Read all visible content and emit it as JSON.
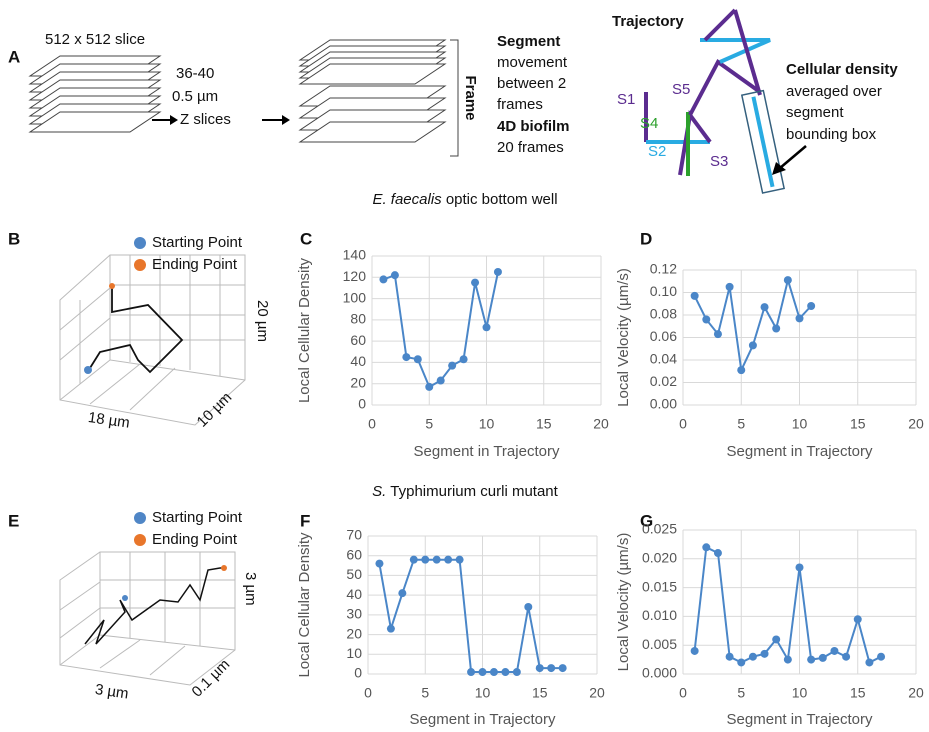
{
  "panel_labels": [
    "A",
    "B",
    "C",
    "D",
    "E",
    "F",
    "G"
  ],
  "panel_a": {
    "slice_label": "512 x 512 slice",
    "z_count": "36-40",
    "z_step": "0.5 µm",
    "z_label": "Z slices",
    "frame_label": "Frame",
    "segment_text": [
      "Segment",
      "movement",
      "between 2",
      "frames",
      "4D biofilm",
      "20 frames"
    ],
    "trajectory_title": "Trajectory",
    "segment_names": [
      "S1",
      "S2",
      "S3",
      "S4",
      "S5"
    ],
    "density_text": [
      "Cellular density",
      "averaged over",
      "segment",
      "bounding box"
    ]
  },
  "sections": [
    {
      "species": "E. faecalis",
      "rest": "optic bottom well"
    },
    {
      "species": "S.",
      "rest": "Typhimurium  curli mutant"
    }
  ],
  "trajectories_3d": [
    {
      "legend": [
        "Starting Point",
        "Ending Point"
      ],
      "axis_labels": [
        "18 µm",
        "10 µm",
        "20 µm"
      ]
    },
    {
      "legend": [
        "Starting Point",
        "Ending Point"
      ],
      "axis_labels": [
        "3 µm",
        "0.1 µm",
        "3 µm"
      ]
    }
  ],
  "chart_data": [
    {
      "type": "line",
      "x_label": "Segment in Trajectory",
      "y_label": "Local Cellular Density",
      "color": "#4a86c8",
      "grid": true,
      "x": [
        1,
        2,
        3,
        4,
        5,
        6,
        7,
        8,
        9,
        10,
        11
      ],
      "values": [
        118,
        122,
        45,
        43,
        17,
        23,
        37,
        43,
        115,
        73,
        125
      ],
      "xlim": [
        0,
        20
      ],
      "xticks": [
        0,
        5,
        10,
        15,
        20
      ],
      "ylim": [
        0,
        140
      ],
      "yticks": [
        0,
        20,
        40,
        60,
        80,
        100,
        120,
        140
      ]
    },
    {
      "type": "line",
      "x_label": "Segment in Trajectory",
      "y_label": "Local Velocity (µm/s)",
      "color": "#4a86c8",
      "grid": true,
      "x": [
        1,
        2,
        3,
        4,
        5,
        6,
        7,
        8,
        9,
        10,
        11
      ],
      "values": [
        0.097,
        0.076,
        0.063,
        0.105,
        0.031,
        0.053,
        0.087,
        0.068,
        0.111,
        0.077,
        0.088
      ],
      "xlim": [
        0,
        20
      ],
      "xticks": [
        0,
        5,
        10,
        15,
        20
      ],
      "ylim": [
        0,
        0.12
      ],
      "yticks": [
        {
          "value": 0,
          "label": "0.00"
        },
        {
          "value": 0.02,
          "label": "0.02"
        },
        {
          "value": 0.04,
          "label": "0.04"
        },
        {
          "value": 0.06,
          "label": "0.06"
        },
        {
          "value": 0.08,
          "label": "0.08"
        },
        {
          "value": 0.1,
          "label": "0.10"
        },
        {
          "value": 0.12,
          "label": "0.12"
        }
      ]
    },
    {
      "type": "line",
      "x_label": "Segment in Trajectory",
      "y_label": "Local Cellular Density",
      "color": "#4a86c8",
      "grid": true,
      "x": [
        1,
        2,
        3,
        4,
        5,
        6,
        7,
        8,
        9,
        10,
        11,
        12,
        13,
        14,
        15,
        16,
        17
      ],
      "values": [
        56,
        23,
        41,
        58,
        58,
        58,
        58,
        58,
        1,
        1,
        1,
        1,
        1,
        34,
        3,
        3,
        3
      ],
      "xlim": [
        0,
        20
      ],
      "xticks": [
        0,
        5,
        10,
        15,
        20
      ],
      "ylim": [
        0,
        70
      ],
      "yticks": [
        0,
        10,
        20,
        30,
        40,
        50,
        60,
        70
      ]
    },
    {
      "type": "line",
      "x_label": "Segment in Trajectory",
      "y_label": "Local Velocity (µm/s)",
      "color": "#4a86c8",
      "grid": true,
      "x": [
        1,
        2,
        3,
        4,
        5,
        6,
        7,
        8,
        9,
        10,
        11,
        12,
        13,
        14,
        15,
        16,
        17
      ],
      "values": [
        0.004,
        0.022,
        0.021,
        0.003,
        0.002,
        0.003,
        0.0035,
        0.006,
        0.0025,
        0.0185,
        0.0025,
        0.0028,
        0.004,
        0.003,
        0.0095,
        0.002,
        0.003
      ],
      "xlim": [
        0,
        20
      ],
      "xticks": [
        0,
        5,
        10,
        15,
        20
      ],
      "ylim": [
        0,
        0.025
      ],
      "yticks": [
        {
          "value": 0,
          "label": "0.000"
        },
        {
          "value": 0.005,
          "label": "0.005"
        },
        {
          "value": 0.01,
          "label": "0.010"
        },
        {
          "value": 0.015,
          "label": "0.015"
        },
        {
          "value": 0.02,
          "label": "0.020"
        },
        {
          "value": 0.025,
          "label": "0.025"
        }
      ]
    }
  ]
}
